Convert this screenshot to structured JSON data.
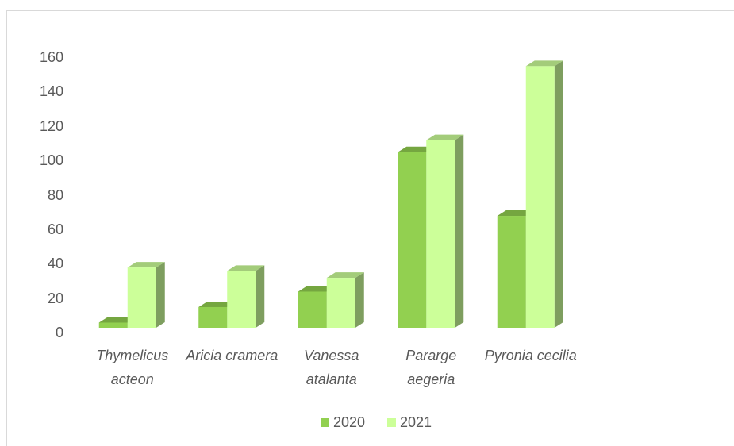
{
  "chart_data": {
    "type": "bar3d",
    "categories": [
      "Thymelicus acteon",
      "Aricia cramera",
      "Vanessa atalanta",
      "Pararge aegeria",
      "Pyronia cecilia"
    ],
    "series": [
      {
        "name": "2020",
        "color": "#92d050",
        "values": [
          3,
          12,
          21,
          102,
          65
        ]
      },
      {
        "name": "2021",
        "color": "#ccff99",
        "values": [
          35,
          33,
          29,
          109,
          152
        ]
      }
    ],
    "ylim": [
      0,
      160
    ],
    "yticks": [
      0,
      20,
      40,
      60,
      80,
      100,
      120,
      140,
      160
    ],
    "grid": false,
    "legend": "bottom"
  }
}
